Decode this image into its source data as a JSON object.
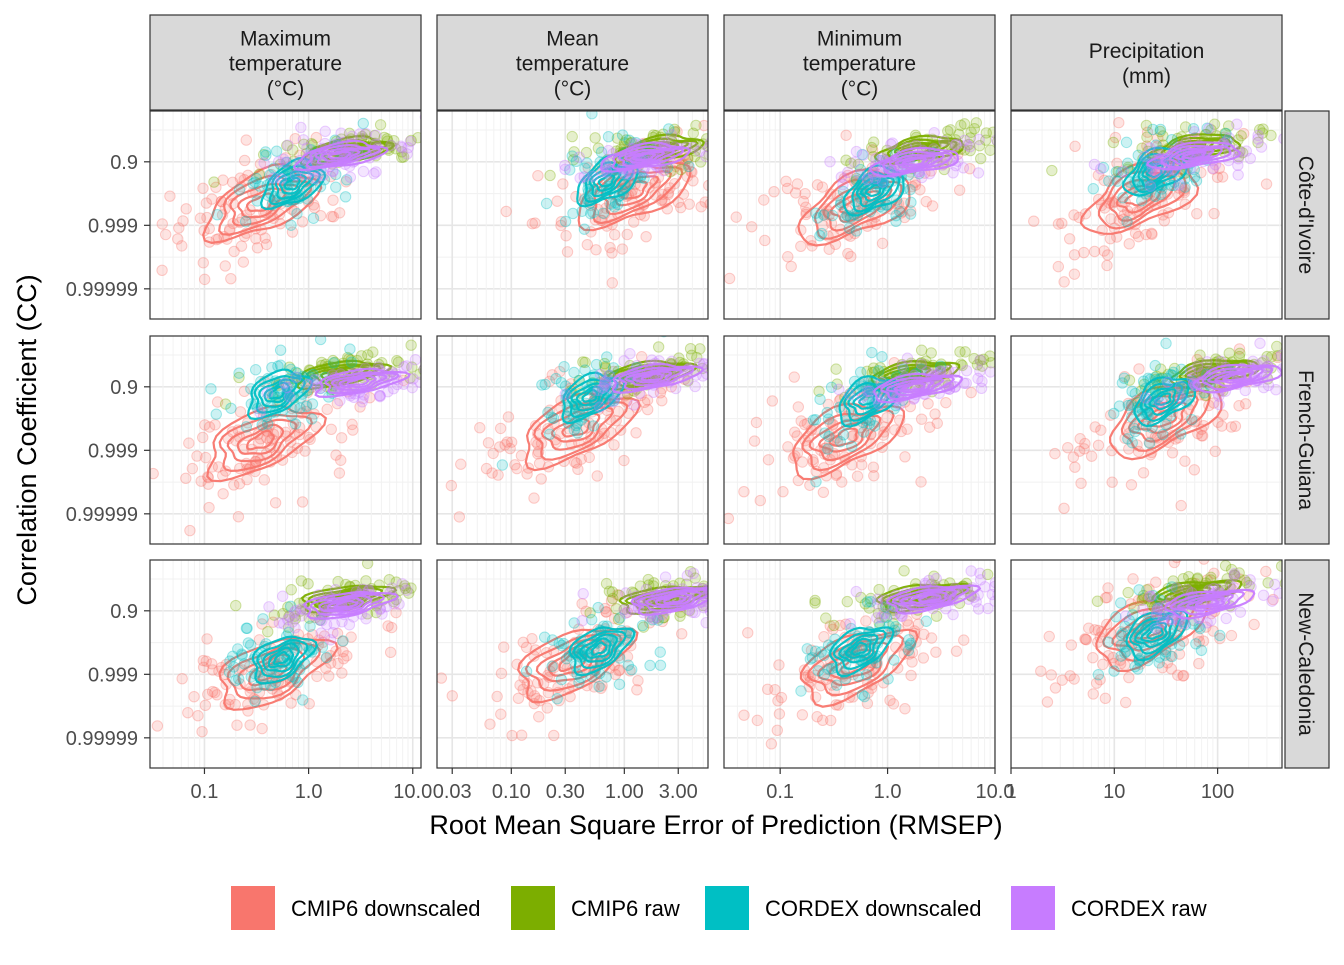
{
  "chart_data": {
    "type": "scatter",
    "title": "",
    "xlabel": "Root Mean Square Error of Prediction (RMSEP)",
    "ylabel": "Correlation Coefficient (CC)",
    "y_axis": {
      "scale": "log of (1 - CC)",
      "ticks": [
        "0.9",
        "0.999",
        "0.99999"
      ]
    },
    "facet_columns": [
      {
        "label_lines": [
          "Maximum",
          "temperature",
          "(°C)"
        ],
        "x_scale": "log",
        "x_range": [
          0.03,
          12
        ],
        "x_ticks": [
          {
            "value": 0.1,
            "label": "0.1"
          },
          {
            "value": 1,
            "label": "1.0"
          },
          {
            "value": 10,
            "label": "10.0"
          }
        ]
      },
      {
        "label_lines": [
          "Mean",
          "temperature",
          "(°C)"
        ],
        "x_scale": "log",
        "x_range": [
          0.022,
          5.5
        ],
        "x_ticks": [
          {
            "value": 0.03,
            "label": "0.03"
          },
          {
            "value": 0.1,
            "label": "0.10"
          },
          {
            "value": 0.3,
            "label": "0.30"
          },
          {
            "value": 1,
            "label": "1.00"
          },
          {
            "value": 3,
            "label": "3.00"
          }
        ]
      },
      {
        "label_lines": [
          "Minimum",
          "temperature",
          "(°C)"
        ],
        "x_scale": "log",
        "x_range": [
          0.03,
          10
        ],
        "x_ticks": [
          {
            "value": 0.1,
            "label": "0.1"
          },
          {
            "value": 1,
            "label": "1.0"
          },
          {
            "value": 10,
            "label": "10.0"
          }
        ]
      },
      {
        "label_lines": [
          "Precipitation",
          "(mm)"
        ],
        "x_scale": "log",
        "x_range": [
          1,
          420
        ],
        "x_ticks": [
          {
            "value": 1,
            "label": "1"
          },
          {
            "value": 10,
            "label": "10"
          },
          {
            "value": 100,
            "label": "100"
          }
        ]
      }
    ],
    "facet_rows": [
      "Côte-d'Ivoire",
      "French-Guiana",
      "New-Caledonia"
    ],
    "legend": {
      "position": "bottom",
      "items": [
        {
          "label": "CMIP6 downscaled",
          "color": "#F8766D"
        },
        {
          "label": "CMIP6 raw",
          "color": "#7CAE00"
        },
        {
          "label": "CORDEX downscaled",
          "color": "#00BFC4"
        },
        {
          "label": "CORDEX raw",
          "color": "#C77CFF"
        }
      ]
    },
    "series_note_clusters": {
      "CMIP6 downscaled": [
        [
          [
            0.35,
            2.3
          ],
          [
            1.2,
            1.9
          ],
          [
            0.5,
            2.4
          ],
          [
            0.6,
            1.9
          ],
          [
            18,
            2.1
          ],
          [
            0.1,
            3.2
          ],
          [
            0.6,
            3.0
          ]
        ],
        [
          [
            0.35,
            2.7
          ],
          [
            0.38,
            2.3
          ],
          [
            0.4,
            2.6
          ],
          [
            0.6,
            2.0
          ],
          [
            30,
            2.0
          ],
          [
            0.08,
            3.5
          ],
          [
            0.35,
            3.2
          ]
        ],
        [
          [
            0.45,
            2.9
          ],
          [
            0.35,
            2.6
          ],
          [
            0.5,
            2.7
          ],
          [
            0.55,
            2.1
          ],
          [
            22,
            1.6
          ],
          [
            0.12,
            3.5
          ],
          [
            0.5,
            3.0
          ]
        ]
      ],
      "CMIP6 raw": [
        [
          [
            2.3,
            0.65
          ],
          [
            2.0,
            0.6
          ],
          [
            2.0,
            0.62
          ],
          [
            2.8,
            0.7
          ],
          [
            60,
            0.55
          ],
          [
            2.0,
            0.55
          ],
          [
            3.0,
            0.6
          ]
        ],
        [
          [
            2.0,
            0.6
          ],
          [
            1.6,
            0.6
          ],
          [
            1.7,
            0.6
          ],
          [
            2.2,
            0.7
          ],
          [
            90,
            0.55
          ],
          [
            2.0,
            0.55
          ],
          [
            3.0,
            0.6
          ]
        ],
        [
          [
            2.2,
            0.6
          ],
          [
            2.2,
            0.62
          ],
          [
            2.0,
            0.55
          ],
          [
            2.0,
            0.7
          ],
          [
            60,
            0.45
          ],
          [
            1.8,
            0.55
          ],
          [
            2.5,
            0.6
          ]
        ]
      ],
      "CORDEX downscaled": [
        [
          [
            0.7,
            1.7
          ],
          [
            0.7,
            1.6
          ],
          [
            0.75,
            1.9
          ],
          [
            0.7,
            2.0
          ],
          [
            25,
            1.3
          ],
          [
            0.55,
            1.5
          ],
          [
            0.55,
            2.3
          ]
        ],
        [
          [
            0.5,
            1.2
          ],
          [
            0.5,
            1.3
          ],
          [
            0.65,
            1.4
          ],
          [
            0.55,
            2.0
          ],
          [
            30,
            1.4
          ],
          [
            0.55,
            1.0
          ],
          [
            0.5,
            2.2
          ]
        ],
        [
          [
            0.55,
            2.5
          ],
          [
            0.6,
            2.2
          ],
          [
            0.55,
            2.2
          ],
          [
            0.55,
            2.1
          ],
          [
            25,
            1.7
          ],
          [
            0.6,
            2.1
          ],
          [
            0.6,
            2.0
          ]
        ]
      ],
      "CORDEX raw": [
        [
          [
            2.0,
            0.8
          ],
          [
            1.5,
            0.85
          ],
          [
            1.8,
            1.0
          ],
          [
            3.0,
            0.75
          ],
          [
            60,
            0.8
          ],
          [
            1.8,
            1.0
          ],
          [
            2.5,
            0.6
          ]
        ],
        [
          [
            3.0,
            0.85
          ],
          [
            1.8,
            0.7
          ],
          [
            1.8,
            1.0
          ],
          [
            2.2,
            0.75
          ],
          [
            150,
            0.7
          ],
          [
            1.5,
            0.8
          ],
          [
            2.0,
            0.85
          ]
        ],
        [
          [
            2.3,
            0.8
          ],
          [
            2.8,
            0.65
          ],
          [
            2.5,
            0.6
          ],
          [
            1.5,
            0.9
          ],
          [
            80,
            0.75
          ],
          [
            1.0,
            0.9
          ],
          [
            1.5,
            0.95
          ]
        ]
      ]
    }
  }
}
